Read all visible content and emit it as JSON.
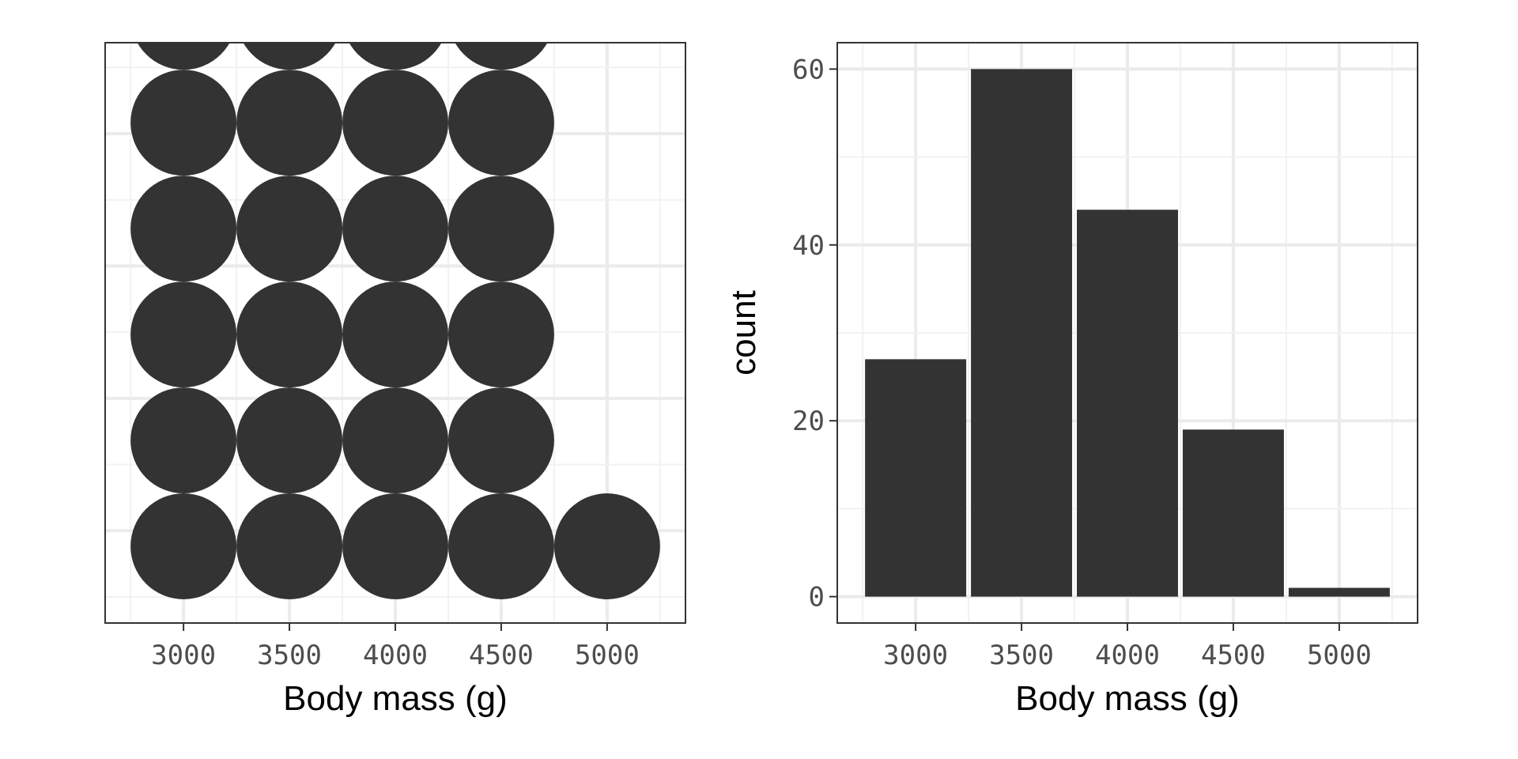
{
  "chart_data": [
    {
      "type": "dotplot",
      "xlabel": "Body mass (g)",
      "ylabel": "",
      "x_ticks": [
        "3000",
        "3500",
        "4000",
        "4500",
        "5000"
      ],
      "xlim": [
        2630,
        5370
      ],
      "bin_centers": [
        3000,
        3500,
        4000,
        4500,
        5000
      ],
      "visible_dots_per_bin": [
        6,
        6,
        6,
        6,
        1
      ],
      "dots_clipped_at_top": [
        true,
        true,
        true,
        true,
        false
      ],
      "y_axis_labels_shown": false,
      "grid": true,
      "dot_color": "#333333"
    },
    {
      "type": "bar",
      "xlabel": "Body mass (g)",
      "ylabel": "count",
      "x_ticks": [
        "3000",
        "3500",
        "4000",
        "4500",
        "5000"
      ],
      "y_ticks": [
        "0",
        "20",
        "40",
        "60"
      ],
      "categories": [
        3000,
        3500,
        4000,
        4500,
        5000
      ],
      "values": [
        27,
        60,
        44,
        19,
        1
      ],
      "bin_width": 500,
      "xlim": [
        2630,
        5370
      ],
      "ylim": [
        -3,
        63
      ],
      "grid": true,
      "bar_color": "#333333"
    }
  ]
}
